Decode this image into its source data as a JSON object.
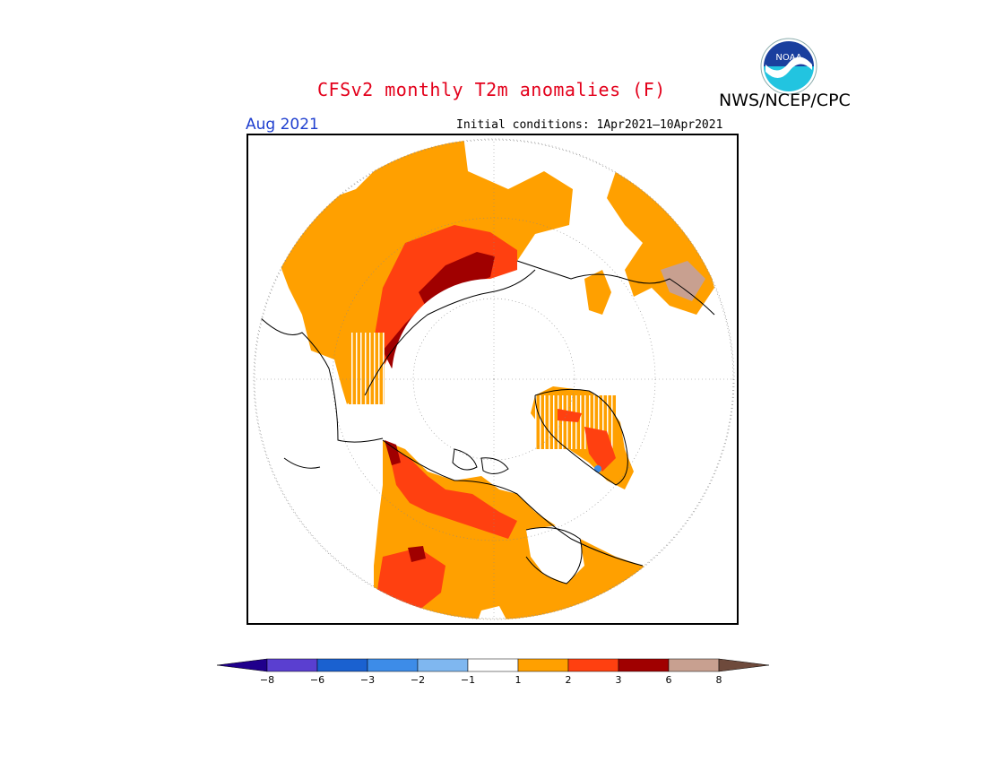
{
  "title": "CFSv2 monthly T2m anomalies (F)",
  "agency": "NWS/NCEP/CPC",
  "logo_text": "NOAA",
  "month": "Aug 2021",
  "initial_conditions": "Initial conditions: 1Apr2021–10Apr2021",
  "colorbar": {
    "colors": [
      "#20008c",
      "#5a3fd0",
      "#1a61d0",
      "#3d8ce8",
      "#7fb7f0",
      "#ffffff",
      "#ffa000",
      "#ff4010",
      "#a00000",
      "#c8a090",
      "#6e4a3c"
    ],
    "ticks": [
      "−8",
      "−6",
      "−3",
      "−2",
      "−1",
      "1",
      "2",
      "3",
      "6",
      "8"
    ]
  },
  "colors": {
    "anom_1_2": "#ffa000",
    "anom_2_3": "#ff4010",
    "anom_3_6": "#a00000",
    "anom_6_8": "#c8a090",
    "anom_neg": "#7fb7f0",
    "title_red": "#e3001b",
    "month_blue": "#1f3fcf"
  }
}
